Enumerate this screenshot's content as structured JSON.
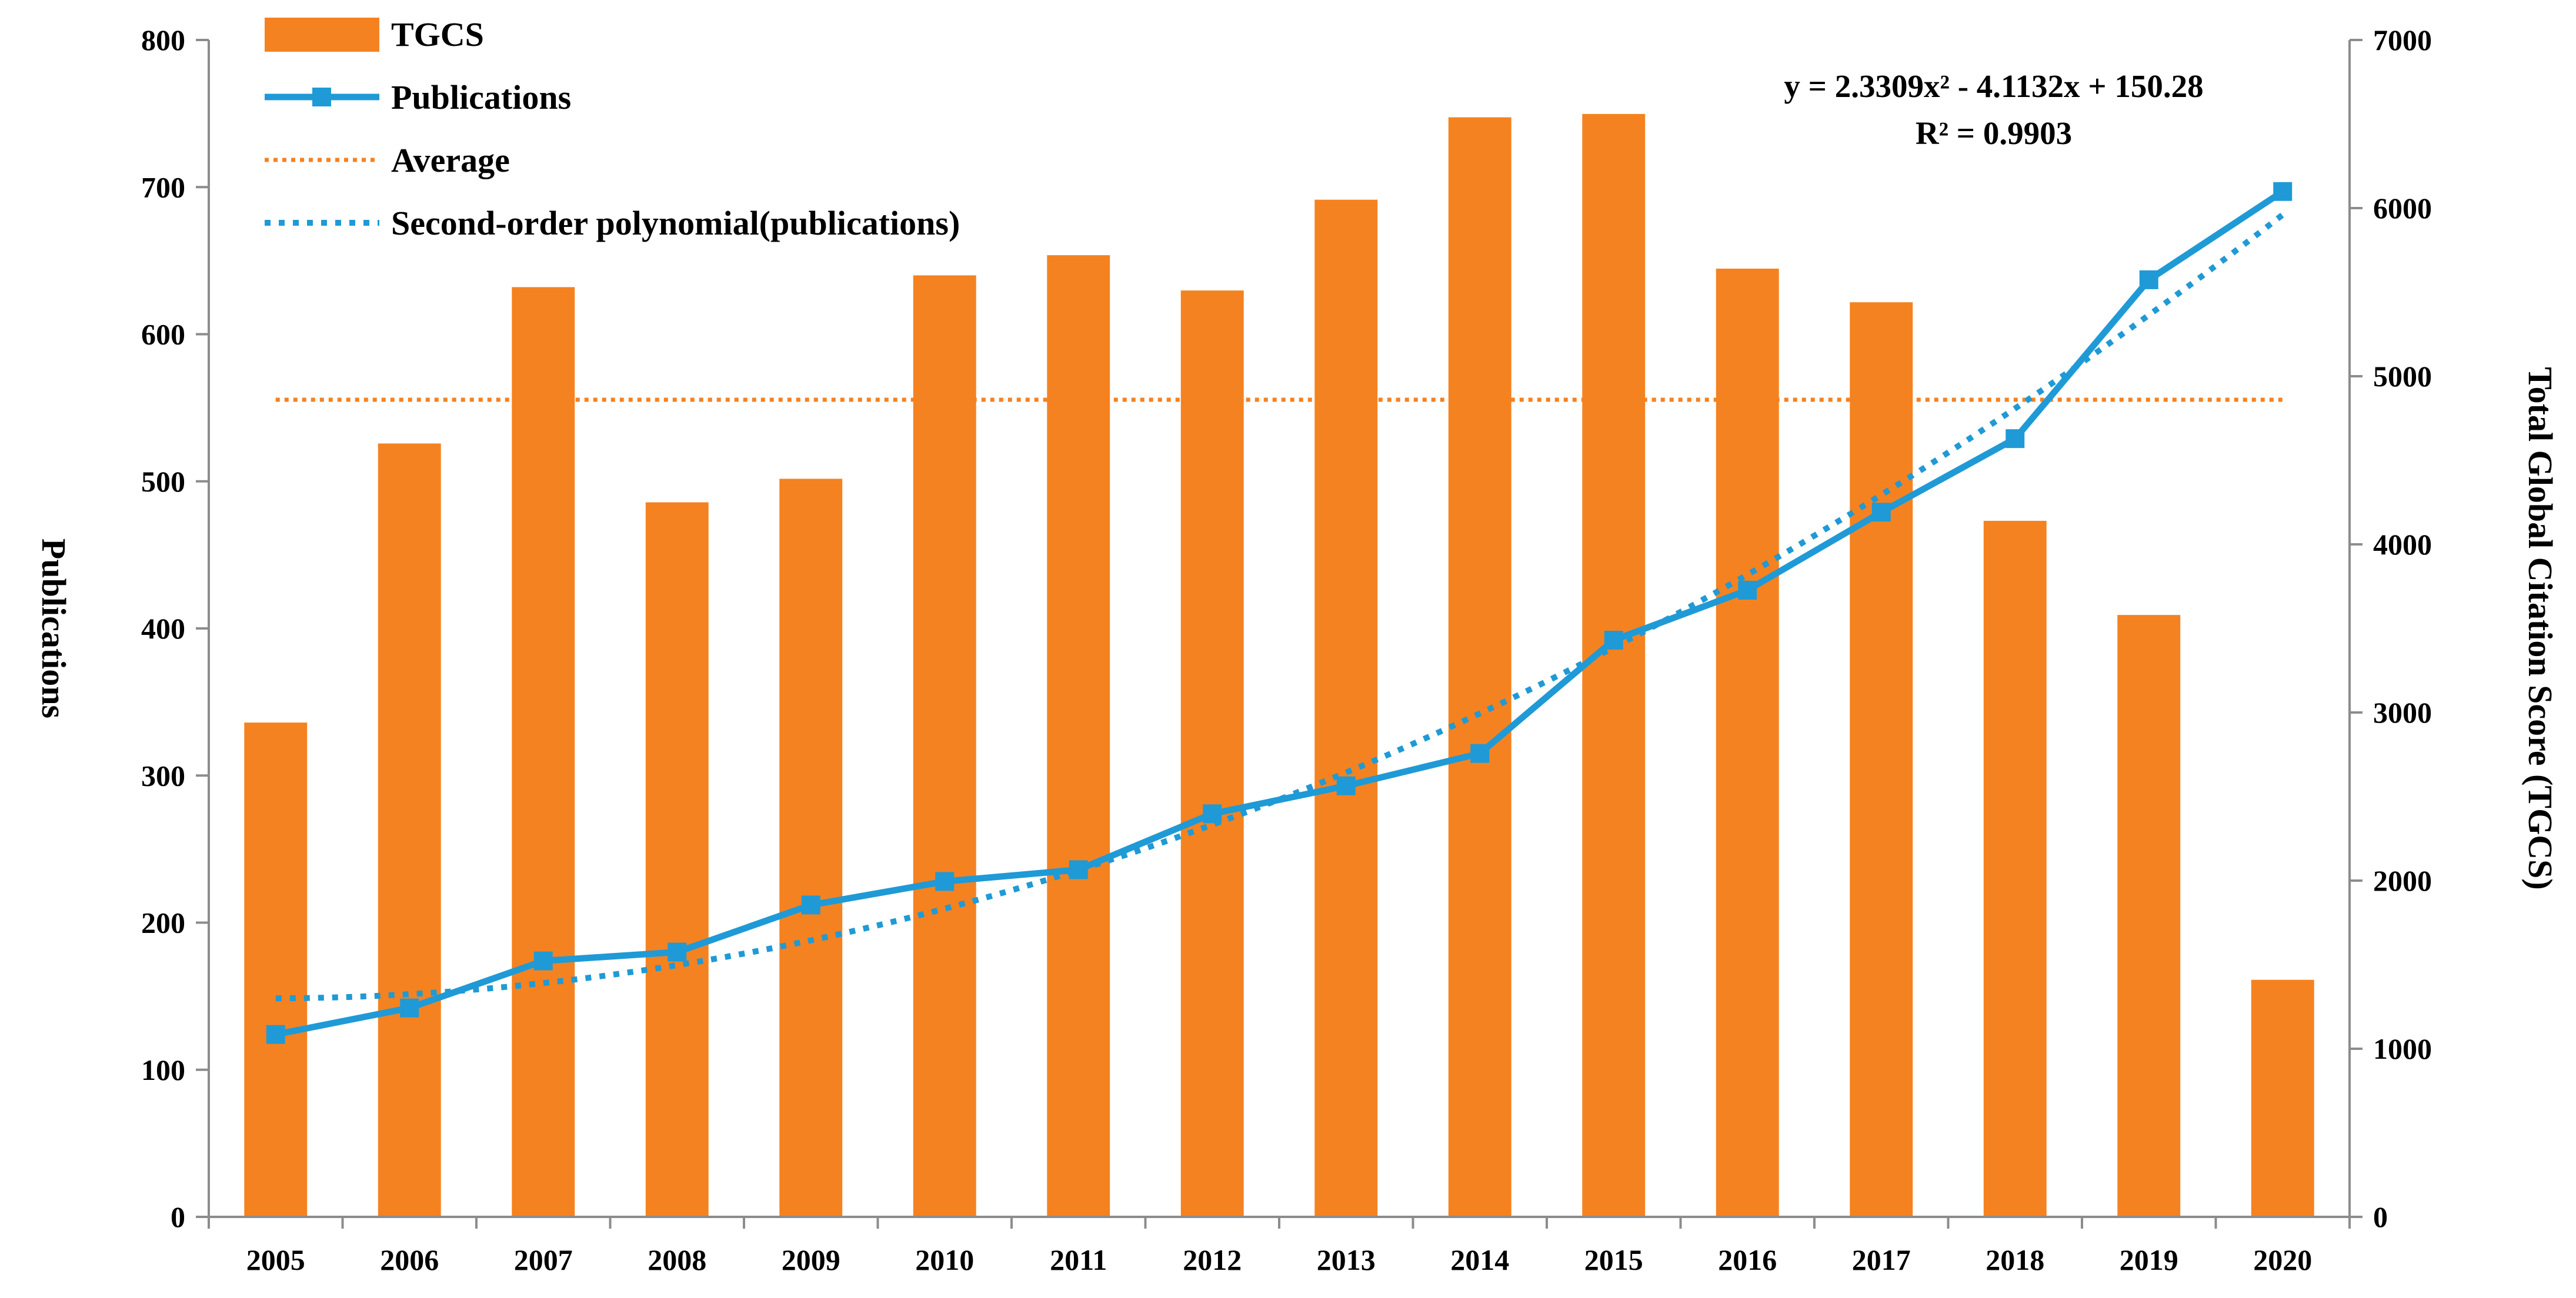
{
  "chart_data": {
    "type": "bar",
    "categories": [
      "2005",
      "2006",
      "2007",
      "2008",
      "2009",
      "2010",
      "2011",
      "2012",
      "2013",
      "2014",
      "2015",
      "2016",
      "2017",
      "2018",
      "2019",
      "2020"
    ],
    "series": [
      {
        "name": "TGCS",
        "type": "bar",
        "axis": "right",
        "color": "#F58220",
        "values": [
          2940,
          4600,
          5530,
          4250,
          4390,
          5600,
          5720,
          5510,
          6050,
          6540,
          6560,
          5640,
          5440,
          4140,
          3580,
          1410
        ]
      },
      {
        "name": "Publications",
        "type": "line",
        "axis": "left",
        "color": "#1F9AD6",
        "marker": "square",
        "values": [
          124,
          142,
          174,
          180,
          212,
          228,
          236,
          274,
          293,
          315,
          392,
          426,
          479,
          529,
          637,
          697
        ]
      },
      {
        "name": "Average",
        "type": "hline",
        "axis": "right",
        "color": "#F58220",
        "style": "dotted",
        "value": 4860
      },
      {
        "name": "Second-order polynomial(publications)",
        "type": "trendline",
        "axis": "left",
        "color": "#1F9AD6",
        "style": "dotted",
        "coefficients": [
          2.3309,
          -4.1132,
          150.28
        ]
      }
    ],
    "equation": "y = 2.3309x² - 4.1132x + 150.28",
    "r_squared": "R² = 0.9903",
    "ylabel_left": "Publications",
    "ylabel_right": "Total Global Citation Score (TGCS)",
    "ylim_left": [
      0,
      800
    ],
    "yticks_left": [
      "0",
      "100",
      "200",
      "300",
      "400",
      "500",
      "600",
      "700",
      "800"
    ],
    "ylim_right": [
      0,
      7000
    ],
    "yticks_right": [
      "0",
      "1000",
      "2000",
      "3000",
      "4000",
      "5000",
      "6000",
      "7000"
    ],
    "legend": {
      "position": "top-left",
      "items": [
        "TGCS",
        "Publications",
        "Average",
        "Second-order polynomial(publications)"
      ]
    },
    "grid": false
  }
}
